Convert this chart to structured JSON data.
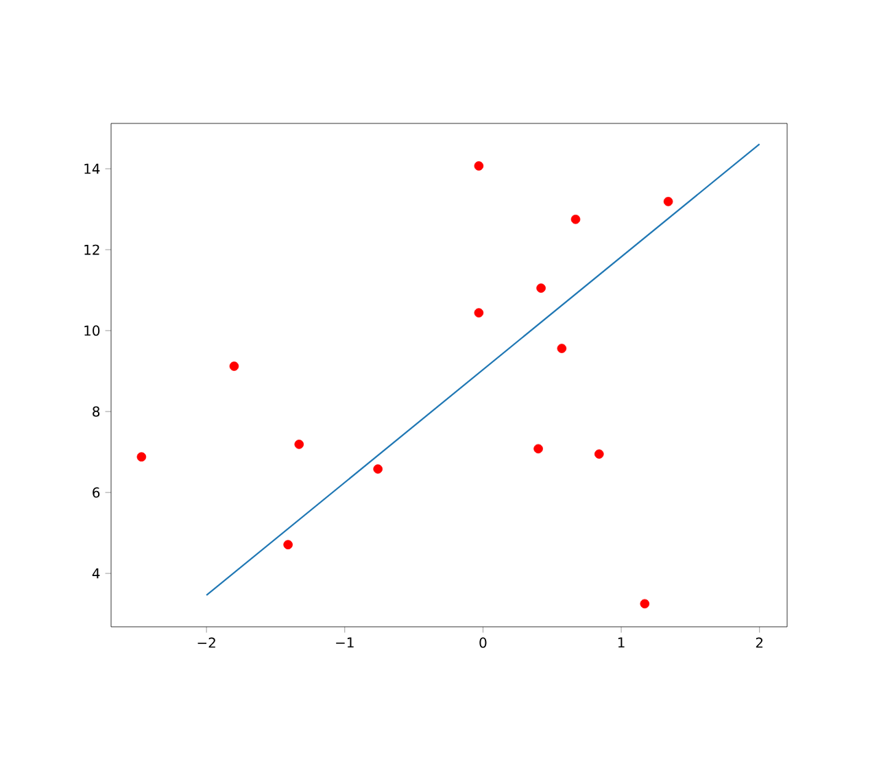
{
  "chart_data": {
    "type": "scatter",
    "grid": false,
    "xlim": [
      -2.69,
      2.2
    ],
    "ylim": [
      2.68,
      15.12
    ],
    "xticks": [
      {
        "value": -2,
        "label": "−2"
      },
      {
        "value": -1,
        "label": "−1"
      },
      0,
      1,
      2
    ],
    "yticks": [
      4,
      6,
      8,
      10,
      12,
      14
    ],
    "series": [
      {
        "marker": "circle",
        "color": "#ff0000",
        "x": [
          -2.47,
          -1.8,
          -1.33,
          -1.41,
          -0.76,
          -0.03,
          -0.03,
          0.42,
          0.4,
          0.57,
          0.67,
          0.84,
          1.34,
          1.17
        ],
        "values": [
          6.88,
          9.12,
          7.19,
          4.71,
          6.58,
          14.07,
          10.44,
          11.05,
          7.08,
          9.56,
          12.75,
          6.95,
          13.19,
          3.25
        ]
      },
      {
        "type": "line",
        "marker": "none",
        "color": "#1f77b4",
        "x": [
          -2,
          2
        ],
        "values": [
          3.46,
          14.61
        ]
      }
    ]
  }
}
